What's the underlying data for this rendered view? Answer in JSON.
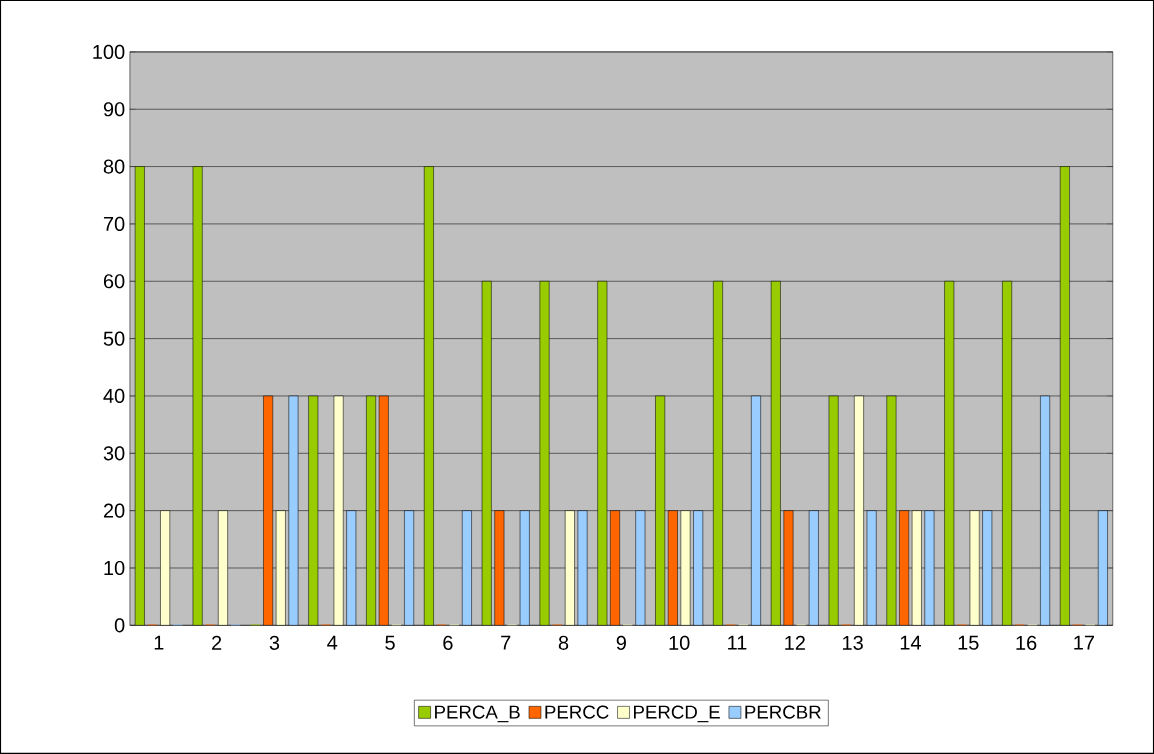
{
  "chart_data": {
    "type": "bar",
    "categories": [
      "1",
      "2",
      "3",
      "4",
      "5",
      "6",
      "7",
      "8",
      "9",
      "10",
      "11",
      "12",
      "13",
      "14",
      "15",
      "16",
      "17"
    ],
    "series": [
      {
        "name": "PERCA_B",
        "color": "#99cc00",
        "values": [
          80,
          80,
          0,
          40,
          40,
          80,
          60,
          60,
          60,
          40,
          60,
          60,
          40,
          40,
          60,
          60,
          80
        ]
      },
      {
        "name": "PERCC",
        "color": "#ff6600",
        "values": [
          0,
          0,
          40,
          0,
          40,
          0,
          20,
          0,
          20,
          20,
          0,
          20,
          0,
          20,
          0,
          0,
          0
        ]
      },
      {
        "name": "PERCD_E",
        "color": "#ffffcc",
        "values": [
          20,
          20,
          20,
          40,
          0,
          0,
          0,
          20,
          0,
          20,
          0,
          0,
          40,
          20,
          20,
          0,
          0
        ]
      },
      {
        "name": "PERCBR",
        "color": "#99ccff",
        "values": [
          0,
          0,
          40,
          20,
          20,
          20,
          20,
          20,
          20,
          20,
          40,
          20,
          20,
          20,
          20,
          40,
          20
        ]
      }
    ],
    "ylim": [
      0,
      100
    ],
    "yticks": [
      0,
      10,
      20,
      30,
      40,
      50,
      60,
      70,
      80,
      90,
      100
    ],
    "grid": "y",
    "legend": "bottom"
  }
}
